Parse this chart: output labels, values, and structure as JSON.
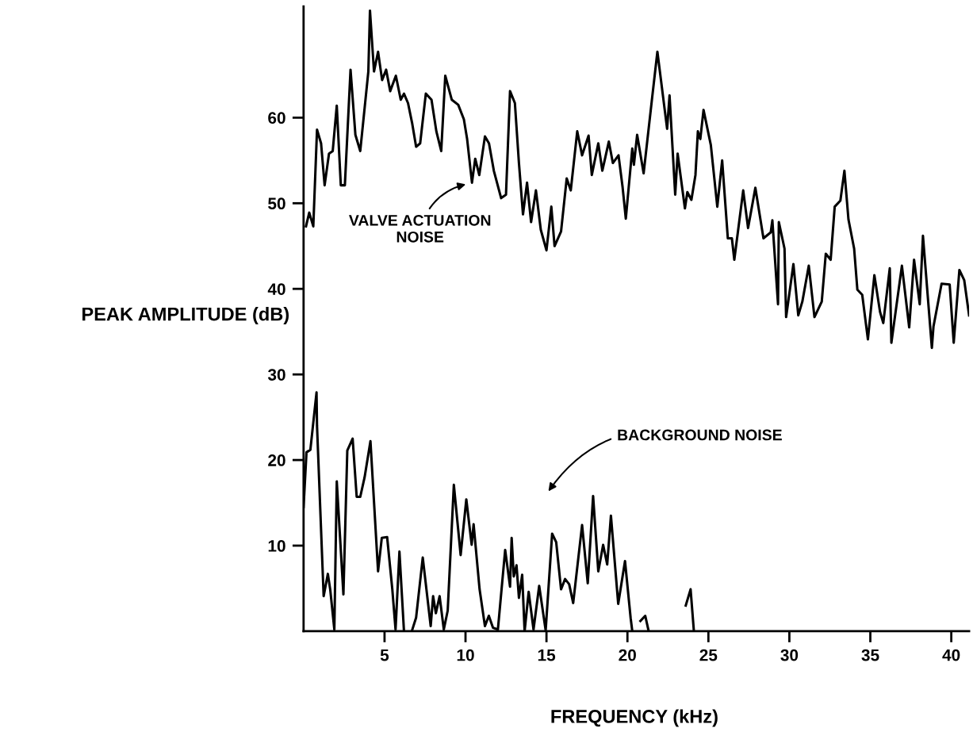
{
  "chart_data": {
    "type": "line",
    "xlabel": "FREQUENCY (kHz)",
    "ylabel": "PEAK AMPLITUDE (dB)",
    "xlim": [
      0,
      41.1
    ],
    "ylim": [
      0,
      73
    ],
    "xticks": [
      5,
      10,
      15,
      20,
      25,
      30,
      35,
      40
    ],
    "yticks": [
      10,
      20,
      30,
      40,
      50,
      60
    ],
    "series": [
      {
        "color": "#000000",
        "x": [
          0.15,
          0.35,
          0.6,
          0.83,
          1.08,
          1.3,
          1.57,
          1.8,
          2.05,
          2.3,
          2.55,
          2.9,
          3.2,
          3.5,
          4.0,
          4.1,
          4.35,
          4.6,
          4.85,
          5.1,
          5.35,
          5.7,
          6.0,
          6.2,
          6.45,
          6.7,
          6.95,
          7.2,
          7.55,
          7.9,
          8.2,
          8.5,
          8.75,
          9.15,
          9.55,
          9.9,
          10.1,
          10.4,
          10.6,
          10.85,
          11.2,
          11.45,
          11.75,
          12.2,
          12.5,
          12.75,
          13.05,
          13.3,
          13.55,
          13.8,
          14.05,
          14.35,
          14.65,
          15.0,
          15.3,
          15.5,
          15.9,
          16.25,
          16.5,
          16.9,
          17.2,
          17.6,
          17.8,
          18.2,
          18.45,
          18.85,
          19.1,
          19.45,
          19.7,
          19.9,
          20.3,
          20.4,
          20.6,
          21.0,
          21.5,
          21.85,
          22.45,
          22.6,
          22.95,
          23.1,
          23.55,
          23.7,
          23.95,
          24.2,
          24.35,
          24.5,
          24.7,
          25.15,
          25.55,
          25.85,
          26.2,
          26.45,
          26.6,
          26.9,
          27.15,
          27.45,
          27.9,
          28.4,
          28.85,
          28.95,
          29.3,
          29.35,
          29.7,
          29.8,
          30.25,
          30.55,
          30.8,
          31.2,
          31.55,
          32.0,
          32.25,
          32.55,
          32.8,
          33.15,
          33.4,
          33.65,
          34.0,
          34.2,
          34.5,
          34.85,
          35.25,
          35.6,
          35.8,
          36.2,
          36.3,
          36.95,
          37.4,
          37.7,
          38.05,
          38.25,
          38.8,
          38.9,
          39.4,
          39.9,
          40.15,
          40.5,
          40.8,
          41.1
        ],
        "values": [
          47.3,
          48.9,
          47.3,
          58.6,
          57.0,
          52.1,
          55.8,
          56.1,
          61.4,
          52.1,
          52.1,
          65.6,
          58.0,
          56.1,
          65.4,
          72.5,
          65.4,
          67.7,
          64.4,
          65.6,
          63.1,
          64.9,
          62.1,
          62.8,
          61.7,
          59.4,
          56.6,
          57.0,
          62.8,
          62.1,
          58.4,
          56.1,
          64.9,
          62.1,
          61.5,
          59.8,
          57.5,
          52.4,
          55.2,
          53.3,
          57.8,
          57.0,
          53.8,
          50.6,
          51.0,
          63.1,
          61.7,
          54.7,
          48.7,
          52.4,
          47.8,
          51.5,
          46.9,
          44.5,
          49.6,
          45.0,
          46.7,
          52.9,
          51.5,
          58.4,
          55.6,
          57.9,
          53.3,
          57.0,
          53.8,
          57.2,
          54.7,
          55.6,
          51.9,
          48.2,
          56.4,
          54.5,
          58.0,
          53.5,
          61.9,
          67.7,
          58.7,
          62.6,
          51.0,
          55.8,
          49.4,
          51.3,
          50.4,
          53.3,
          58.4,
          57.5,
          60.9,
          56.8,
          49.6,
          55.0,
          45.9,
          45.9,
          43.4,
          47.8,
          51.5,
          47.1,
          51.8,
          45.9,
          46.6,
          48.0,
          38.2,
          47.8,
          44.7,
          36.7,
          42.9,
          36.9,
          38.5,
          42.7,
          36.7,
          38.5,
          44.1,
          43.4,
          49.6,
          50.3,
          53.8,
          48.1,
          44.7,
          39.9,
          39.3,
          34.1,
          41.6,
          37.3,
          36.0,
          42.4,
          33.7,
          42.7,
          35.5,
          43.4,
          38.2,
          46.2,
          33.1,
          35.6,
          40.6,
          40.5,
          33.7,
          42.2,
          41.0,
          36.9
        ]
      },
      {
        "color": "#000000",
        "x": [
          0.0,
          0.18,
          0.42,
          0.8,
          0.83,
          1.24,
          1.5,
          1.65,
          1.9,
          2.05,
          2.46,
          2.7,
          3.03,
          3.28,
          3.5,
          3.77,
          4.13,
          4.6,
          4.83,
          5.16,
          5.48,
          5.68,
          5.92,
          6.2,
          6.45,
          6.7,
          6.95,
          7.36,
          7.85,
          8.0,
          8.17,
          8.4,
          8.66,
          8.9,
          9.28,
          9.7,
          10.05,
          10.38,
          10.5,
          10.87,
          11.2,
          11.44,
          11.7,
          12.0,
          12.45,
          12.75,
          12.85,
          12.98,
          13.15,
          13.3,
          13.5,
          13.65,
          13.9,
          14.2,
          14.55,
          14.95,
          15.35,
          15.6,
          15.9,
          16.15,
          16.4,
          16.65,
          17.2,
          17.55,
          17.88,
          18.2,
          18.5,
          18.75,
          18.98,
          19.43,
          19.85,
          20.2,
          20.3,
          20.55,
          20.8,
          21.1,
          21.3,
          22.4,
          23.6,
          23.9,
          24.1
        ],
        "values": [
          14.5,
          20.9,
          21.2,
          27.9,
          24.0,
          4.1,
          6.7,
          4.8,
          0.2,
          17.5,
          4.3,
          21.1,
          22.5,
          15.7,
          15.7,
          18.0,
          22.2,
          7.0,
          10.9,
          11.0,
          4.9,
          0.2,
          9.3,
          0,
          null,
          0.1,
          1.6,
          8.6,
          0.6,
          4.1,
          2.1,
          4.1,
          0.2,
          2.4,
          17.1,
          8.9,
          15.4,
          10.1,
          12.5,
          4.9,
          0.6,
          1.8,
          0.4,
          0.2,
          9.5,
          5.2,
          10.9,
          6.4,
          7.7,
          3.9,
          6.6,
          0,
          4.6,
          0.2,
          5.3,
          0.1,
          11.4,
          10.4,
          4.9,
          6.1,
          5.5,
          3.3,
          12.4,
          5.6,
          15.8,
          7.0,
          10.1,
          7.8,
          13.5,
          3.2,
          8.2,
          1.5,
          0,
          null,
          1.2,
          1.8,
          0.1,
          null,
          3.0,
          4.9,
          0.1
        ]
      }
    ],
    "annotations": [
      "VALVE ACTUATION\nNOISE",
      "BACKGROUND NOISE"
    ]
  }
}
